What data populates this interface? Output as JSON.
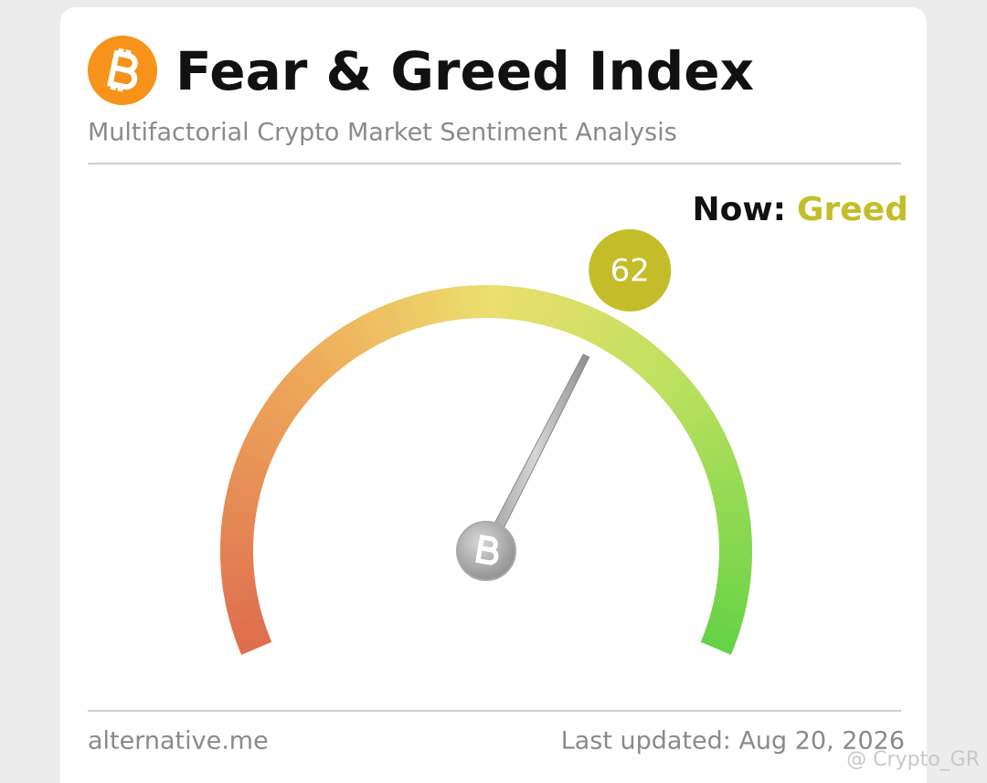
{
  "chart_data": {
    "type": "gauge",
    "title": "Fear & Greed Index",
    "subtitle": "Multifactorial Crypto Market Sentiment Analysis",
    "now_label": "Now:",
    "status": "Greed",
    "color": "#c4bd2a",
    "value": 62,
    "ylim": [
      0,
      100
    ],
    "source": "alternative.me",
    "updated": "Last updated: Aug 20, 2026",
    "watermark": "@ Crypto_GR"
  }
}
